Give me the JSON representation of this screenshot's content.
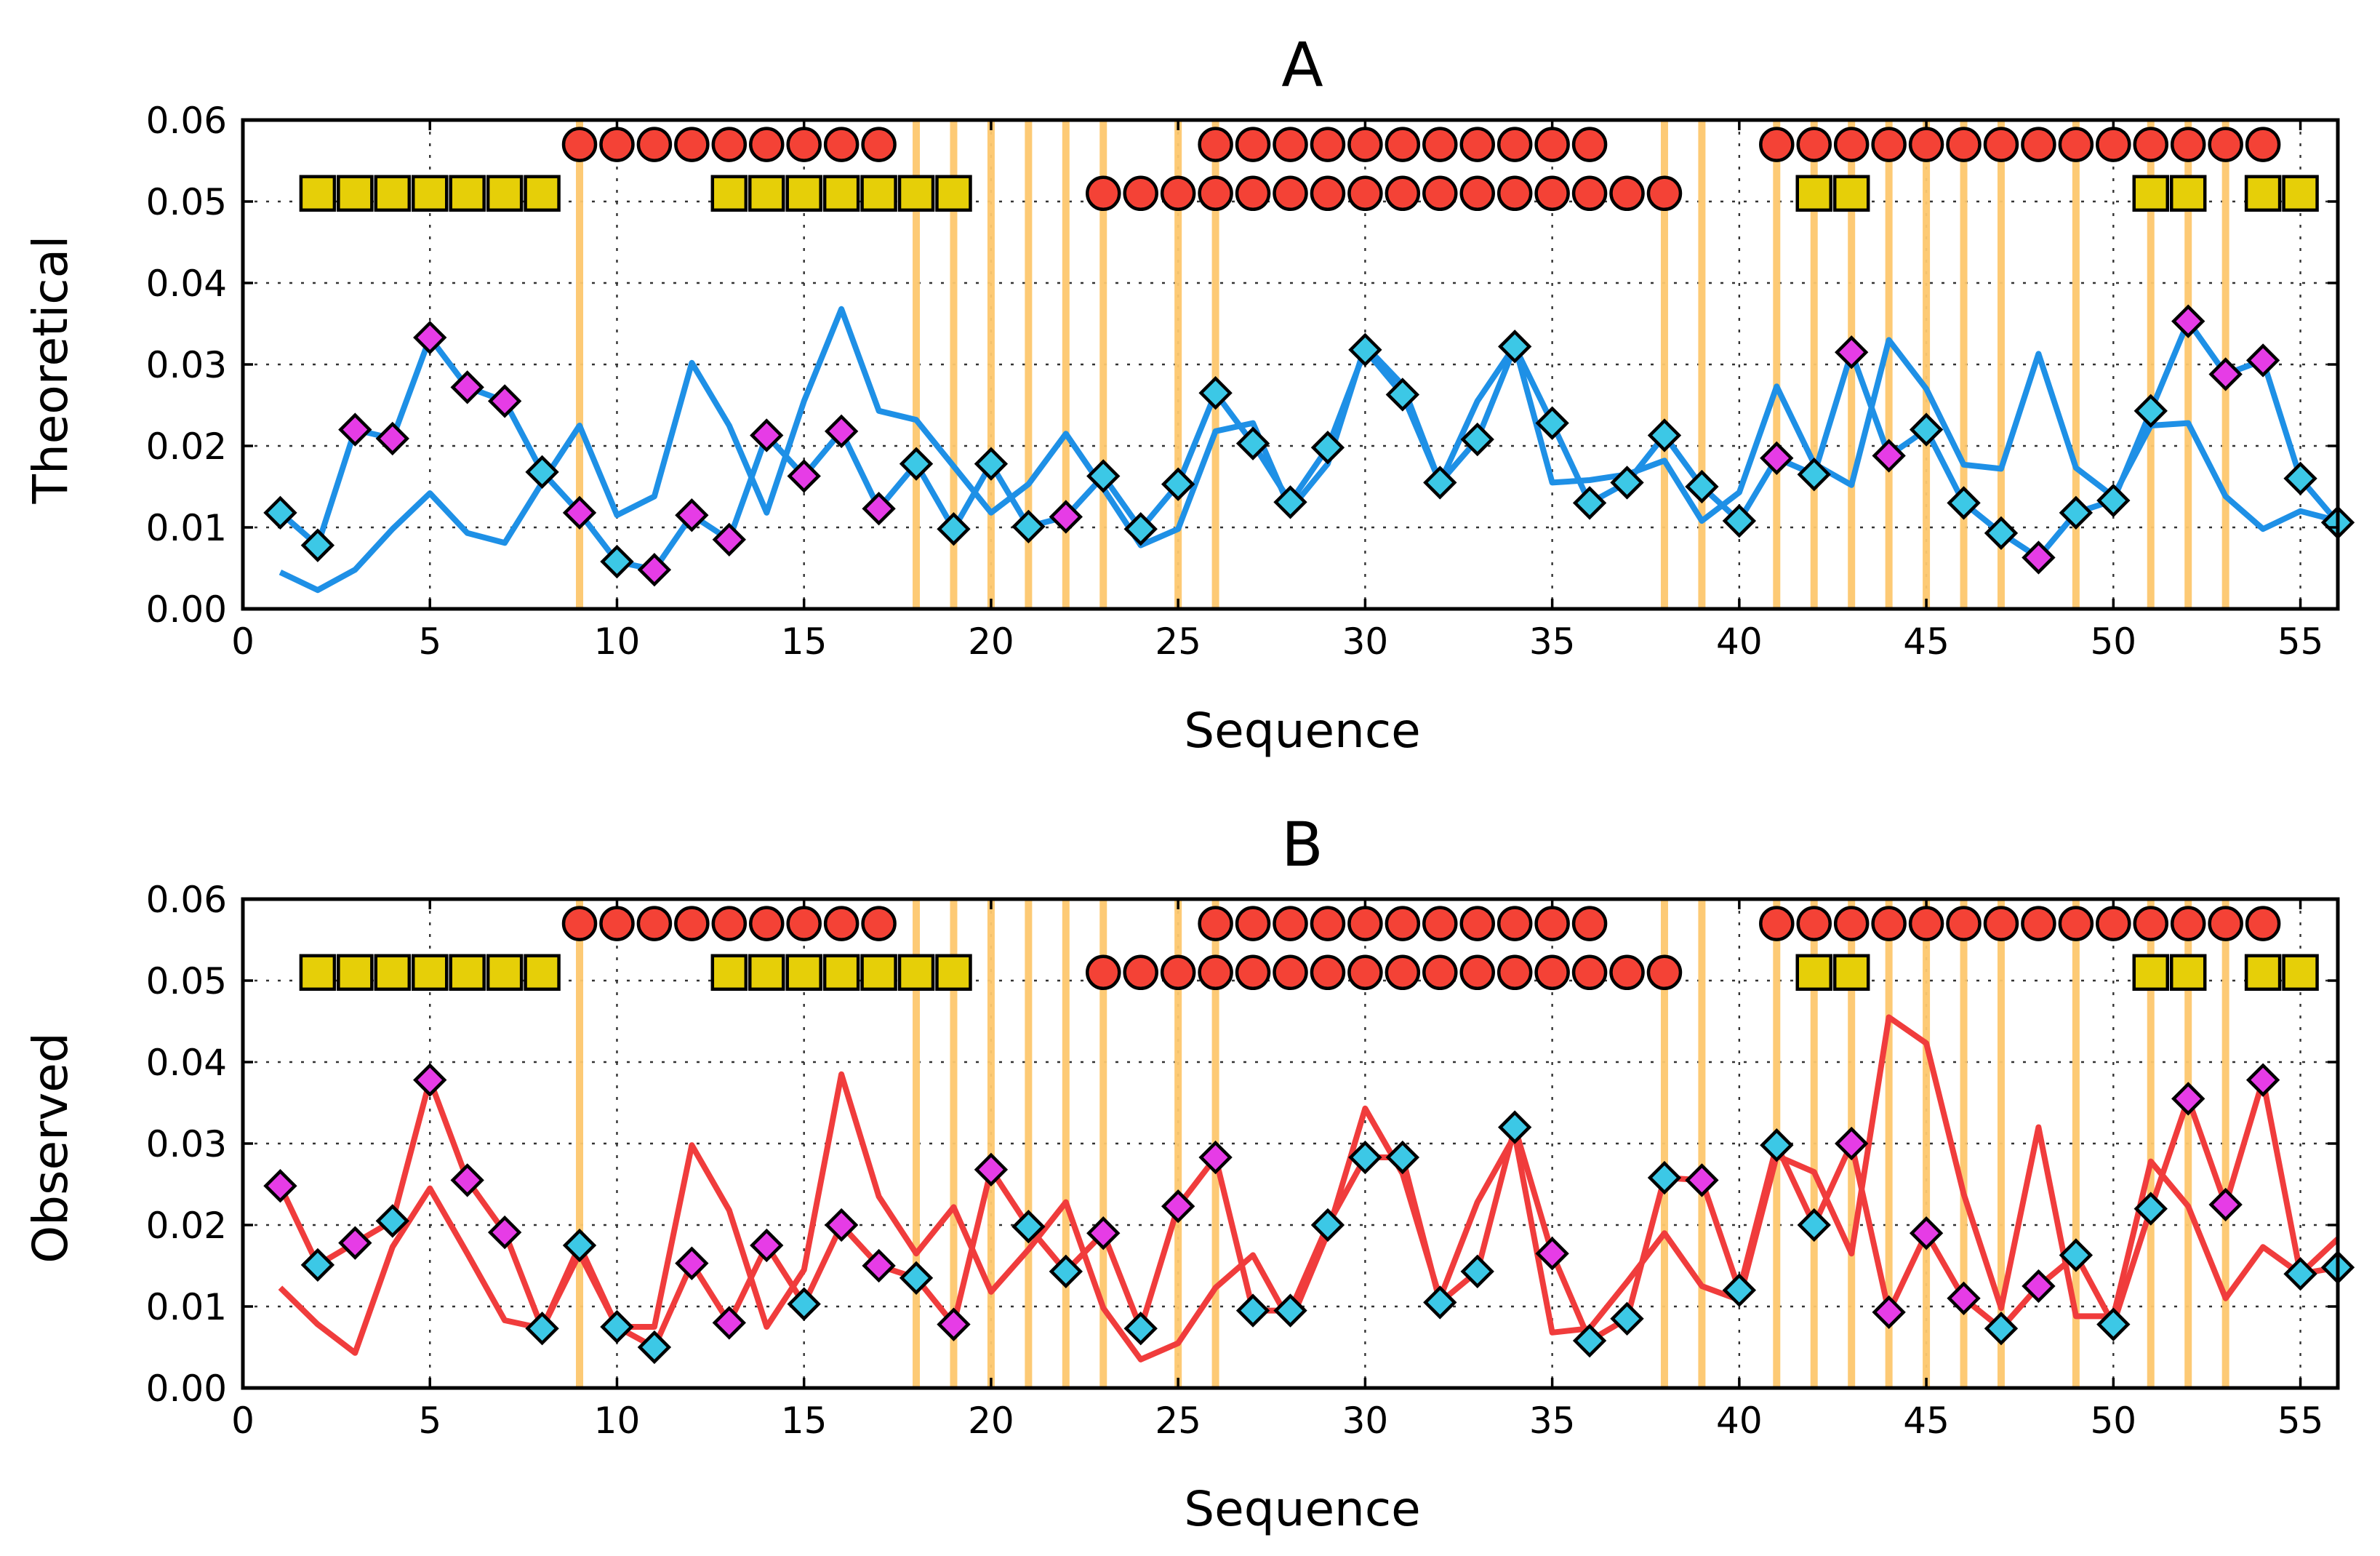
{
  "chart_data": [
    {
      "type": "line",
      "title": "A",
      "xlabel": "Sequence",
      "ylabel": "Theoretical",
      "xlim": [
        0,
        56
      ],
      "ylim": [
        0,
        0.06
      ],
      "xticks": [
        "0",
        "5",
        "10",
        "15",
        "20",
        "25",
        "30",
        "35",
        "40",
        "45",
        "50",
        "55"
      ],
      "yticks": [
        "0.00",
        "0.01",
        "0.02",
        "0.03",
        "0.04",
        "0.05",
        "0.06"
      ],
      "grid": true,
      "line_color": "#1e90e6",
      "series": [
        {
          "name": "line with diamond markers",
          "x": [
            1,
            2,
            3,
            4,
            5,
            6,
            7,
            8,
            9,
            10,
            11,
            12,
            13,
            14,
            15,
            16,
            17,
            18,
            19,
            20,
            21,
            22,
            23,
            24,
            25,
            26,
            27,
            28,
            29,
            30,
            31,
            32,
            33,
            34,
            35,
            36,
            37,
            38,
            39,
            40,
            41,
            42,
            43,
            44,
            45,
            46,
            47,
            48,
            49,
            50,
            51,
            52,
            53,
            54,
            55,
            56
          ],
          "y": [
            0.0118,
            0.0078,
            0.022,
            0.0209,
            0.0333,
            0.0272,
            0.0255,
            0.0168,
            0.0118,
            0.0058,
            0.0048,
            0.0115,
            0.0085,
            0.0213,
            0.0163,
            0.0218,
            0.0123,
            0.0178,
            0.0098,
            0.0178,
            0.0101,
            0.0113,
            0.0163,
            0.0098,
            0.0153,
            0.0265,
            0.0203,
            0.0131,
            0.0198,
            0.0318,
            0.0263,
            0.0155,
            0.0208,
            0.0322,
            0.0228,
            0.013,
            0.0155,
            0.0213,
            0.015,
            0.0108,
            0.0185,
            0.0165,
            0.0315,
            0.0188,
            0.022,
            0.013,
            0.0093,
            0.0063,
            0.0118,
            0.0133,
            0.0243,
            0.0353,
            0.0288,
            0.0305,
            0.016,
            0.0106
          ]
        },
        {
          "name": "line without markers",
          "x": [
            1,
            2,
            3,
            4,
            5,
            6,
            7,
            8,
            9,
            10,
            11,
            12,
            13,
            14,
            15,
            16,
            17,
            18,
            19,
            20,
            21,
            22,
            23,
            24,
            25,
            26,
            27,
            28,
            29,
            30,
            31,
            32,
            33,
            34,
            35,
            36,
            37,
            38,
            39,
            40,
            41,
            42,
            43,
            44,
            45,
            46,
            47,
            48,
            49,
            50,
            51,
            52,
            53,
            54,
            55,
            56
          ],
          "y": [
            0.0045,
            0.0023,
            0.0048,
            0.0098,
            0.0142,
            0.0093,
            0.0081,
            0.0155,
            0.0225,
            0.0115,
            0.0138,
            0.0302,
            0.0225,
            0.0118,
            0.0255,
            0.0368,
            0.0243,
            0.0232,
            0.0175,
            0.0118,
            0.0153,
            0.0215,
            0.0148,
            0.0078,
            0.0098,
            0.0218,
            0.0228,
            0.0122,
            0.0178,
            0.0323,
            0.0275,
            0.0155,
            0.0255,
            0.0323,
            0.0155,
            0.0158,
            0.0165,
            0.0182,
            0.0108,
            0.0143,
            0.0273,
            0.0178,
            0.0152,
            0.033,
            0.027,
            0.0177,
            0.0172,
            0.0313,
            0.0173,
            0.0138,
            0.0225,
            0.0228,
            0.0138,
            0.0098,
            0.012,
            0.0108
          ]
        }
      ],
      "marker_colors": [
        "cyan",
        "cyan",
        "magenta",
        "magenta",
        "magenta",
        "magenta",
        "magenta",
        "cyan",
        "magenta",
        "cyan",
        "magenta",
        "magenta",
        "magenta",
        "magenta",
        "magenta",
        "magenta",
        "magenta",
        "cyan",
        "cyan",
        "cyan",
        "cyan",
        "magenta",
        "cyan",
        "cyan",
        "cyan",
        "cyan",
        "cyan",
        "cyan",
        "cyan",
        "cyan",
        "cyan",
        "cyan",
        "cyan",
        "cyan",
        "cyan",
        "cyan",
        "cyan",
        "cyan",
        "cyan",
        "cyan",
        "magenta",
        "cyan",
        "magenta",
        "magenta",
        "cyan",
        "cyan",
        "cyan",
        "magenta",
        "cyan",
        "cyan",
        "cyan",
        "magenta",
        "magenta",
        "magenta",
        "cyan",
        "cyan"
      ]
    },
    {
      "type": "line",
      "title": "B",
      "xlabel": "Sequence",
      "ylabel": "Observed",
      "xlim": [
        0,
        56
      ],
      "ylim": [
        0,
        0.06
      ],
      "xticks": [
        "0",
        "5",
        "10",
        "15",
        "20",
        "25",
        "30",
        "35",
        "40",
        "45",
        "50",
        "55"
      ],
      "yticks": [
        "0.00",
        "0.01",
        "0.02",
        "0.03",
        "0.04",
        "0.05",
        "0.06"
      ],
      "grid": true,
      "line_color": "#f03c3c",
      "series": [
        {
          "name": "line with diamond markers",
          "x": [
            1,
            2,
            3,
            4,
            5,
            6,
            7,
            8,
            9,
            10,
            11,
            12,
            13,
            14,
            15,
            16,
            17,
            18,
            19,
            20,
            21,
            22,
            23,
            24,
            25,
            26,
            27,
            28,
            29,
            30,
            31,
            32,
            33,
            34,
            35,
            36,
            37,
            38,
            39,
            40,
            41,
            42,
            43,
            44,
            45,
            46,
            47,
            48,
            49,
            50,
            51,
            52,
            53,
            54,
            55,
            56
          ],
          "y": [
            0.0248,
            0.0151,
            0.0178,
            0.0205,
            0.0378,
            0.0255,
            0.0191,
            0.0073,
            0.0175,
            0.0075,
            0.005,
            0.0153,
            0.008,
            0.0175,
            0.0103,
            0.02,
            0.015,
            0.0135,
            0.0078,
            0.0268,
            0.0198,
            0.0143,
            0.019,
            0.0073,
            0.0223,
            0.0283,
            0.0095,
            0.0095,
            0.02,
            0.0283,
            0.0283,
            0.0105,
            0.0143,
            0.032,
            0.0165,
            0.0058,
            0.0085,
            0.0258,
            0.0255,
            0.012,
            0.0298,
            0.02,
            0.03,
            0.0093,
            0.019,
            0.011,
            0.0073,
            0.0125,
            0.0163,
            0.0078,
            0.022,
            0.0355,
            0.0225,
            0.0378,
            0.014,
            0.0148
          ]
        },
        {
          "name": "line without markers",
          "x": [
            1,
            2,
            3,
            4,
            5,
            6,
            7,
            8,
            9,
            10,
            11,
            12,
            13,
            14,
            15,
            16,
            17,
            18,
            19,
            20,
            21,
            22,
            23,
            24,
            25,
            26,
            27,
            28,
            29,
            30,
            31,
            32,
            33,
            34,
            35,
            36,
            37,
            38,
            39,
            40,
            41,
            42,
            43,
            44,
            45,
            46,
            47,
            48,
            49,
            50,
            51,
            52,
            53,
            54,
            55,
            56
          ],
          "y": [
            0.0123,
            0.0078,
            0.0043,
            0.0173,
            0.0245,
            0.0165,
            0.0083,
            0.0073,
            0.0165,
            0.0075,
            0.0075,
            0.0298,
            0.0218,
            0.0075,
            0.0145,
            0.0385,
            0.0235,
            0.0165,
            0.0222,
            0.0118,
            0.017,
            0.0228,
            0.0098,
            0.0035,
            0.0055,
            0.0123,
            0.0163,
            0.008,
            0.019,
            0.0343,
            0.0263,
            0.011,
            0.0228,
            0.031,
            0.0068,
            0.0073,
            0.013,
            0.019,
            0.0125,
            0.0108,
            0.0285,
            0.0265,
            0.0165,
            0.0455,
            0.0423,
            0.0238,
            0.0098,
            0.032,
            0.0088,
            0.0088,
            0.0278,
            0.0223,
            0.011,
            0.0173,
            0.014,
            0.0183
          ]
        }
      ],
      "marker_colors": [
        "magenta",
        "cyan",
        "magenta",
        "cyan",
        "magenta",
        "magenta",
        "magenta",
        "cyan",
        "cyan",
        "cyan",
        "cyan",
        "magenta",
        "magenta",
        "magenta",
        "cyan",
        "magenta",
        "magenta",
        "cyan",
        "magenta",
        "magenta",
        "cyan",
        "cyan",
        "magenta",
        "cyan",
        "magenta",
        "magenta",
        "cyan",
        "cyan",
        "cyan",
        "cyan",
        "cyan",
        "cyan",
        "cyan",
        "cyan",
        "magenta",
        "cyan",
        "cyan",
        "cyan",
        "magenta",
        "cyan",
        "cyan",
        "cyan",
        "magenta",
        "magenta",
        "magenta",
        "magenta",
        "cyan",
        "magenta",
        "cyan",
        "cyan",
        "cyan",
        "magenta",
        "magenta",
        "magenta",
        "cyan",
        "cyan"
      ]
    }
  ],
  "annotations": {
    "vertical_bands_x": [
      9,
      18,
      19,
      20,
      21,
      22,
      23,
      25,
      26,
      38,
      39,
      41,
      42,
      43,
      44,
      45,
      46,
      47,
      49,
      51,
      52,
      53
    ],
    "circle_rows": [
      {
        "y": 0.057,
        "x": [
          9,
          10,
          11,
          12,
          13,
          14,
          15,
          16,
          17,
          26,
          27,
          28,
          29,
          30,
          31,
          32,
          33,
          34,
          35,
          36,
          41,
          42,
          43,
          44,
          45,
          46,
          47,
          48,
          49,
          50,
          51,
          52,
          53,
          54
        ]
      },
      {
        "y": 0.051,
        "x": [
          23,
          24,
          25,
          26,
          27,
          28,
          29,
          30,
          31,
          32,
          33,
          34,
          35,
          36,
          37,
          38
        ]
      }
    ],
    "square_row": {
      "y": 0.051,
      "x": [
        2,
        3,
        4,
        5,
        6,
        7,
        8,
        13,
        14,
        15,
        16,
        17,
        18,
        19,
        42,
        43,
        51,
        52,
        54,
        55
      ]
    }
  },
  "colors": {
    "cyan": "#3cc8e6",
    "magenta": "#e63ce6",
    "band": "#fdc86e",
    "circle": "#f44236",
    "square": "#e6cf08"
  }
}
